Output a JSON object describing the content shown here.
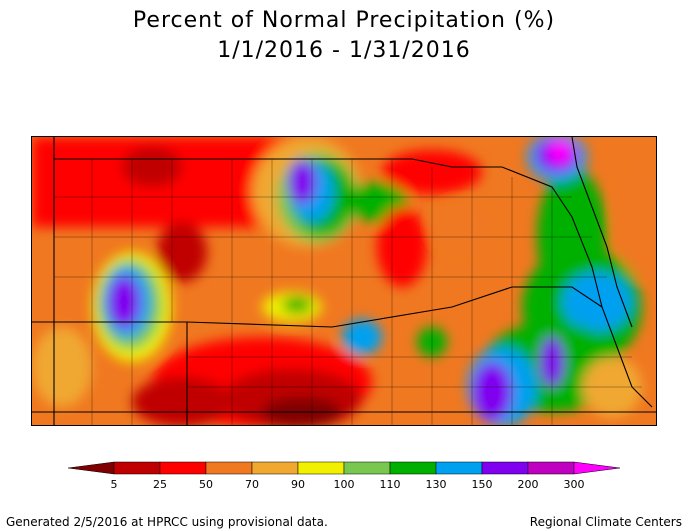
{
  "title": {
    "line1": "Percent of Normal Precipitation (%)",
    "line2": "1/1/2016 - 1/31/2016"
  },
  "legend": {
    "ticks": [
      "5",
      "25",
      "50",
      "70",
      "90",
      "100",
      "110",
      "130",
      "150",
      "200",
      "300"
    ],
    "colors": {
      "below_5": "#800000",
      "5_25": "#c00000",
      "25_50": "#ff0000",
      "50_70": "#f07820",
      "70_90": "#f0a830",
      "90_100": "#f0f000",
      "100_110": "#78c850",
      "110_130": "#00b000",
      "130_150": "#00a0f0",
      "150_200": "#8000f0",
      "200_300": "#c000c0",
      "above_300": "#ff00ff"
    }
  },
  "footer": {
    "left": "Generated 2/5/2016 at HPRCC using provisional data.",
    "right": "Regional Climate Centers"
  }
}
